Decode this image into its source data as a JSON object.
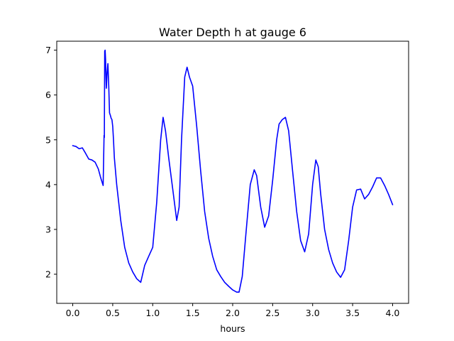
{
  "chart_data": {
    "type": "line",
    "title": "Water Depth h at gauge 6",
    "xlabel": "hours",
    "ylabel": "",
    "xlim": [
      -0.2,
      4.2
    ],
    "ylim": [
      1.35,
      7.2
    ],
    "xticks": [
      0.0,
      0.5,
      1.0,
      1.5,
      2.0,
      2.5,
      3.0,
      3.5,
      4.0
    ],
    "xtick_labels": [
      "0.0",
      "0.5",
      "1.0",
      "1.5",
      "2.0",
      "2.5",
      "3.0",
      "3.5",
      "4.0"
    ],
    "yticks": [
      2,
      3,
      4,
      5,
      6,
      7
    ],
    "ytick_labels": [
      "2",
      "3",
      "4",
      "5",
      "6",
      "7"
    ],
    "grid": false,
    "series": [
      {
        "color": "#0000ff",
        "x": [
          0.0,
          0.04,
          0.08,
          0.12,
          0.16,
          0.2,
          0.24,
          0.28,
          0.32,
          0.35,
          0.38,
          0.392,
          0.395,
          0.4,
          0.405,
          0.41,
          0.415,
          0.42,
          0.43,
          0.44,
          0.45,
          0.46,
          0.47,
          0.48,
          0.49,
          0.5,
          0.51,
          0.52,
          0.55,
          0.6,
          0.65,
          0.7,
          0.75,
          0.8,
          0.85,
          0.9,
          0.95,
          1.0,
          1.05,
          1.1,
          1.13,
          1.16,
          1.18,
          1.2,
          1.25,
          1.3,
          1.33,
          1.36,
          1.4,
          1.43,
          1.46,
          1.5,
          1.55,
          1.6,
          1.65,
          1.7,
          1.75,
          1.8,
          1.85,
          1.9,
          1.95,
          2.0,
          2.05,
          2.08,
          2.12,
          2.17,
          2.22,
          2.27,
          2.3,
          2.35,
          2.4,
          2.45,
          2.5,
          2.55,
          2.58,
          2.62,
          2.66,
          2.7,
          2.75,
          2.8,
          2.85,
          2.9,
          2.95,
          3.0,
          3.04,
          3.07,
          3.1,
          3.15,
          3.2,
          3.25,
          3.3,
          3.35,
          3.4,
          3.45,
          3.5,
          3.55,
          3.6,
          3.65,
          3.7,
          3.75,
          3.8,
          3.85,
          3.9,
          3.95,
          4.0
        ],
        "y": [
          4.87,
          4.85,
          4.8,
          4.82,
          4.7,
          4.57,
          4.55,
          4.5,
          4.35,
          4.15,
          3.98,
          5.1,
          5.05,
          6.98,
          7.0,
          6.8,
          6.45,
          6.15,
          6.5,
          6.7,
          6.2,
          5.6,
          5.55,
          5.48,
          5.45,
          5.3,
          5.0,
          4.6,
          4.0,
          3.2,
          2.6,
          2.25,
          2.05,
          1.9,
          1.82,
          2.2,
          2.4,
          2.6,
          3.6,
          5.0,
          5.5,
          5.2,
          4.9,
          4.6,
          3.9,
          3.2,
          3.5,
          5.0,
          6.4,
          6.62,
          6.4,
          6.2,
          5.3,
          4.3,
          3.4,
          2.8,
          2.4,
          2.1,
          1.95,
          1.82,
          1.73,
          1.65,
          1.6,
          1.6,
          1.95,
          3.0,
          4.0,
          4.33,
          4.2,
          3.5,
          3.05,
          3.3,
          4.1,
          5.0,
          5.35,
          5.45,
          5.5,
          5.2,
          4.3,
          3.4,
          2.75,
          2.5,
          2.9,
          4.0,
          4.55,
          4.4,
          3.8,
          3.0,
          2.55,
          2.25,
          2.05,
          1.93,
          2.1,
          2.75,
          3.5,
          3.88,
          3.9,
          3.68,
          3.78,
          3.95,
          4.15,
          4.15,
          3.98,
          3.78,
          3.55
        ]
      }
    ]
  }
}
